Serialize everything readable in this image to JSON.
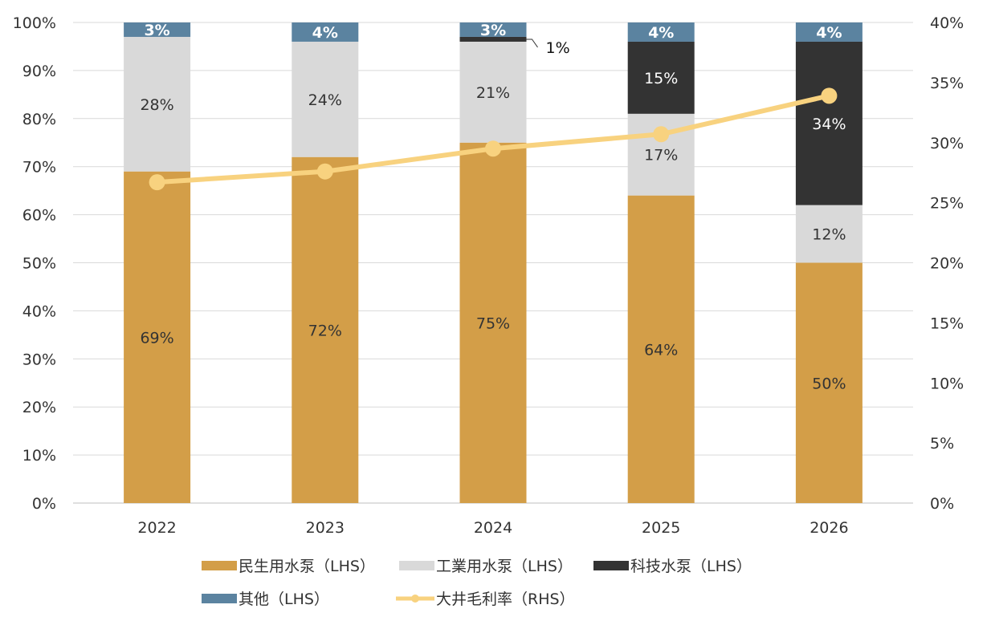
{
  "chart_data": {
    "type": "bar",
    "stacked": true,
    "categories": [
      "2022",
      "2023",
      "2024",
      "2025",
      "2026"
    ],
    "series": [
      {
        "name": "民生用水泵（LHS）",
        "axis": "left",
        "color": "#D39E48",
        "values": [
          69,
          72,
          75,
          64,
          50
        ],
        "labels": [
          "69%",
          "72%",
          "75%",
          "64%",
          "50%"
        ]
      },
      {
        "name": "工業用水泵（LHS）",
        "axis": "left",
        "color": "#D9D9D9",
        "values": [
          28,
          24,
          21,
          17,
          12
        ],
        "labels": [
          "28%",
          "24%",
          "21%",
          "17%",
          "12%"
        ]
      },
      {
        "name": "科技水泵（LHS）",
        "axis": "left",
        "color": "#333333",
        "values": [
          0,
          0,
          1,
          15,
          34
        ],
        "labels": [
          "",
          "",
          "1%",
          "15%",
          "34%"
        ]
      },
      {
        "name": "其他（LHS）",
        "axis": "left",
        "color": "#5B83A0",
        "values": [
          3,
          4,
          3,
          4,
          4
        ],
        "labels": [
          "3%",
          "4%",
          "3%",
          "4%",
          "4%"
        ]
      }
    ],
    "line": {
      "name": "大井毛利率（RHS）",
      "axis": "right",
      "type": "line",
      "color": "#F8D27F",
      "values": [
        26.7,
        27.6,
        29.5,
        30.7,
        33.9
      ]
    },
    "left_axis": {
      "ylim": [
        0,
        100
      ],
      "ticks": [
        0,
        10,
        20,
        30,
        40,
        50,
        60,
        70,
        80,
        90,
        100
      ],
      "tick_labels": [
        "0%",
        "10%",
        "20%",
        "30%",
        "40%",
        "50%",
        "60%",
        "70%",
        "80%",
        "90%",
        "100%"
      ]
    },
    "right_axis": {
      "ylim": [
        0,
        40
      ],
      "ticks": [
        0,
        5,
        10,
        15,
        20,
        25,
        30,
        35,
        40
      ],
      "tick_labels": [
        "0%",
        "5%",
        "10%",
        "15%",
        "20%",
        "25%",
        "30%",
        "35%",
        "40%"
      ]
    },
    "grid": true,
    "legend_placement": "bottom",
    "title": "",
    "xlabel": "",
    "ylabel": ""
  }
}
